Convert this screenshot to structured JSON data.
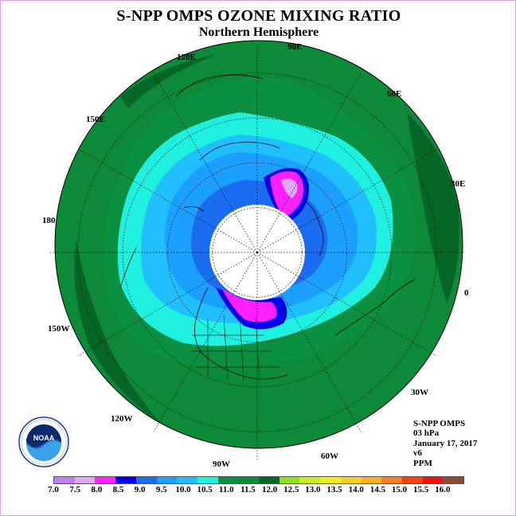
{
  "header": {
    "title": "S-NPP OMPS OZONE MIXING RATIO",
    "subtitle": "Northern Hemisphere"
  },
  "longitude_labels": {
    "e120": "120E",
    "e90": "90E",
    "e60": "60E",
    "e150": "150E",
    "e30": "30E",
    "d180": "180",
    "d0": "0",
    "w150": "150W",
    "w30": "30W",
    "w120": "120W",
    "w60": "60W",
    "w90": "90W"
  },
  "info": {
    "instrument": "S-NPP OMPS",
    "level": "03 hPa",
    "date": "January 17, 2017",
    "version": "v6",
    "units": "PPM"
  },
  "colorbar": {
    "colors": [
      "#c080f0",
      "#e0a8f0",
      "#ff20ff",
      "#0000e8",
      "#1c6cf0",
      "#1ca0ff",
      "#20c0ff",
      "#20f0e0",
      "#0a9040",
      "#0c8a38",
      "#066628",
      "#90e020",
      "#c8f020",
      "#f0f020",
      "#f8d020",
      "#f8b020",
      "#f88020",
      "#f84010",
      "#f01010",
      "#8a4a3a"
    ],
    "labels": [
      "7.0",
      "7.5",
      "8.0",
      "8.5",
      "9.0",
      "9.5",
      "10.0",
      "10.5",
      "11.0",
      "11.5",
      "12.0",
      "12.5",
      "13.0",
      "13.5",
      "14.0",
      "14.5",
      "15.0",
      "15.5",
      "16.0"
    ]
  },
  "logo": {
    "text": "NOAA"
  }
}
